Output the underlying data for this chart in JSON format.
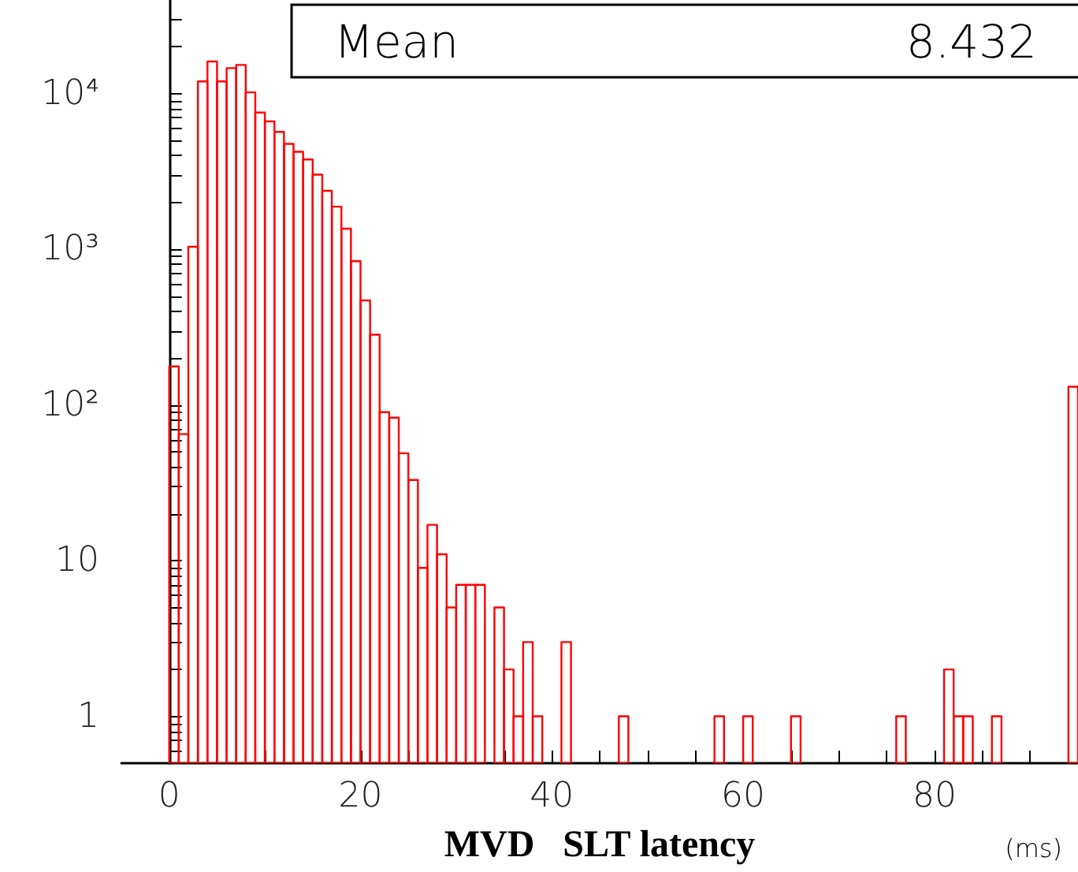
{
  "chart_data": {
    "type": "histogram",
    "xlabel": "MVD   SLT latency",
    "annotations": [
      "Mean",
      "8.432",
      "(ms)"
    ],
    "bins": [
      0,
      1,
      2,
      3,
      4,
      5,
      6,
      7,
      8,
      9,
      10,
      11,
      12,
      13,
      14,
      15,
      16,
      17,
      18,
      19,
      20,
      21,
      22,
      23,
      24,
      25,
      26,
      27,
      28,
      29,
      30,
      31,
      32,
      33,
      34,
      35,
      36,
      37,
      38,
      39,
      40,
      41,
      42,
      43,
      44,
      45,
      46,
      47,
      48,
      49,
      50,
      51,
      52,
      53,
      54,
      55,
      56,
      57,
      58,
      59,
      60,
      61,
      62,
      63,
      64,
      65,
      66,
      67,
      68,
      69,
      70,
      71,
      72,
      73,
      74,
      75,
      76,
      77,
      78,
      79,
      80,
      81,
      82,
      83,
      84,
      85,
      86,
      87,
      88,
      89,
      90,
      91,
      92,
      93,
      94,
      95
    ],
    "values": [
      177,
      65,
      1040,
      12000,
      16100,
      12000,
      14600,
      15300,
      10200,
      7570,
      6640,
      5690,
      4760,
      4240,
      3780,
      3020,
      2380,
      1880,
      1360,
      840,
      470,
      283,
      90,
      83,
      49,
      33,
      9,
      17,
      11,
      5,
      7,
      7,
      7,
      null,
      5,
      2,
      1,
      3,
      1,
      null,
      null,
      3,
      null,
      null,
      null,
      null,
      null,
      1,
      null,
      null,
      null,
      null,
      null,
      null,
      null,
      null,
      null,
      1,
      null,
      null,
      1,
      null,
      null,
      null,
      null,
      1,
      null,
      null,
      null,
      null,
      null,
      null,
      null,
      null,
      null,
      null,
      1,
      null,
      null,
      null,
      null,
      2,
      1,
      1,
      null,
      null,
      1,
      null,
      null,
      null,
      null,
      null,
      null,
      null,
      131
    ],
    "color": "#ff0000",
    "log": "y",
    "xlim": [
      -5,
      95
    ],
    "ylim": [
      0.5,
      40000
    ],
    "xticks": [
      {
        "value": 0,
        "label": "0"
      },
      {
        "value": 5,
        "label": null
      },
      {
        "value": 10,
        "label": null
      },
      {
        "value": 15,
        "label": null
      },
      {
        "value": 20,
        "label": "20"
      },
      {
        "value": 25,
        "label": null
      },
      {
        "value": 30,
        "label": null
      },
      {
        "value": 35,
        "label": null
      },
      {
        "value": 40,
        "label": "40"
      },
      {
        "value": 45,
        "label": null
      },
      {
        "value": 50,
        "label": null
      },
      {
        "value": 55,
        "label": null
      },
      {
        "value": 60,
        "label": "60"
      },
      {
        "value": 65,
        "label": null
      },
      {
        "value": 70,
        "label": null
      },
      {
        "value": 75,
        "label": null
      },
      {
        "value": 80,
        "label": "80"
      },
      {
        "value": 85,
        "label": null
      },
      {
        "value": 90,
        "label": null
      }
    ],
    "yticks": [
      {
        "value": 0.6,
        "label": null
      },
      {
        "value": 0.7,
        "label": null
      },
      {
        "value": 0.8,
        "label": null
      },
      {
        "value": 0.9,
        "label": null
      },
      {
        "value": 1,
        "label": "1"
      },
      {
        "value": 2,
        "label": null
      },
      {
        "value": 3,
        "label": null
      },
      {
        "value": 4,
        "label": null
      },
      {
        "value": 5,
        "label": null
      },
      {
        "value": 6,
        "label": null
      },
      {
        "value": 7,
        "label": null
      },
      {
        "value": 8,
        "label": null
      },
      {
        "value": 9,
        "label": null
      },
      {
        "value": 10,
        "label": "10"
      },
      {
        "value": 20,
        "label": null
      },
      {
        "value": 30,
        "label": null
      },
      {
        "value": 40,
        "label": null
      },
      {
        "value": 50,
        "label": null
      },
      {
        "value": 60,
        "label": null
      },
      {
        "value": 70,
        "label": null
      },
      {
        "value": 80,
        "label": null
      },
      {
        "value": 90,
        "label": null
      },
      {
        "value": 100,
        "label": "10²"
      },
      {
        "value": 200,
        "label": null
      },
      {
        "value": 300,
        "label": null
      },
      {
        "value": 400,
        "label": null
      },
      {
        "value": 500,
        "label": null
      },
      {
        "value": 600,
        "label": null
      },
      {
        "value": 700,
        "label": null
      },
      {
        "value": 800,
        "label": null
      },
      {
        "value": 900,
        "label": null
      },
      {
        "value": 1000,
        "label": "10³"
      },
      {
        "value": 2000,
        "label": null
      },
      {
        "value": 3000,
        "label": null
      },
      {
        "value": 4000,
        "label": null
      },
      {
        "value": 5000,
        "label": null
      },
      {
        "value": 6000,
        "label": null
      },
      {
        "value": 7000,
        "label": null
      },
      {
        "value": 8000,
        "label": null
      },
      {
        "value": 9000,
        "label": null
      },
      {
        "value": 10000,
        "label": "10⁴"
      },
      {
        "value": 20000,
        "label": null
      },
      {
        "value": 30000,
        "label": null
      }
    ],
    "grid": false
  }
}
